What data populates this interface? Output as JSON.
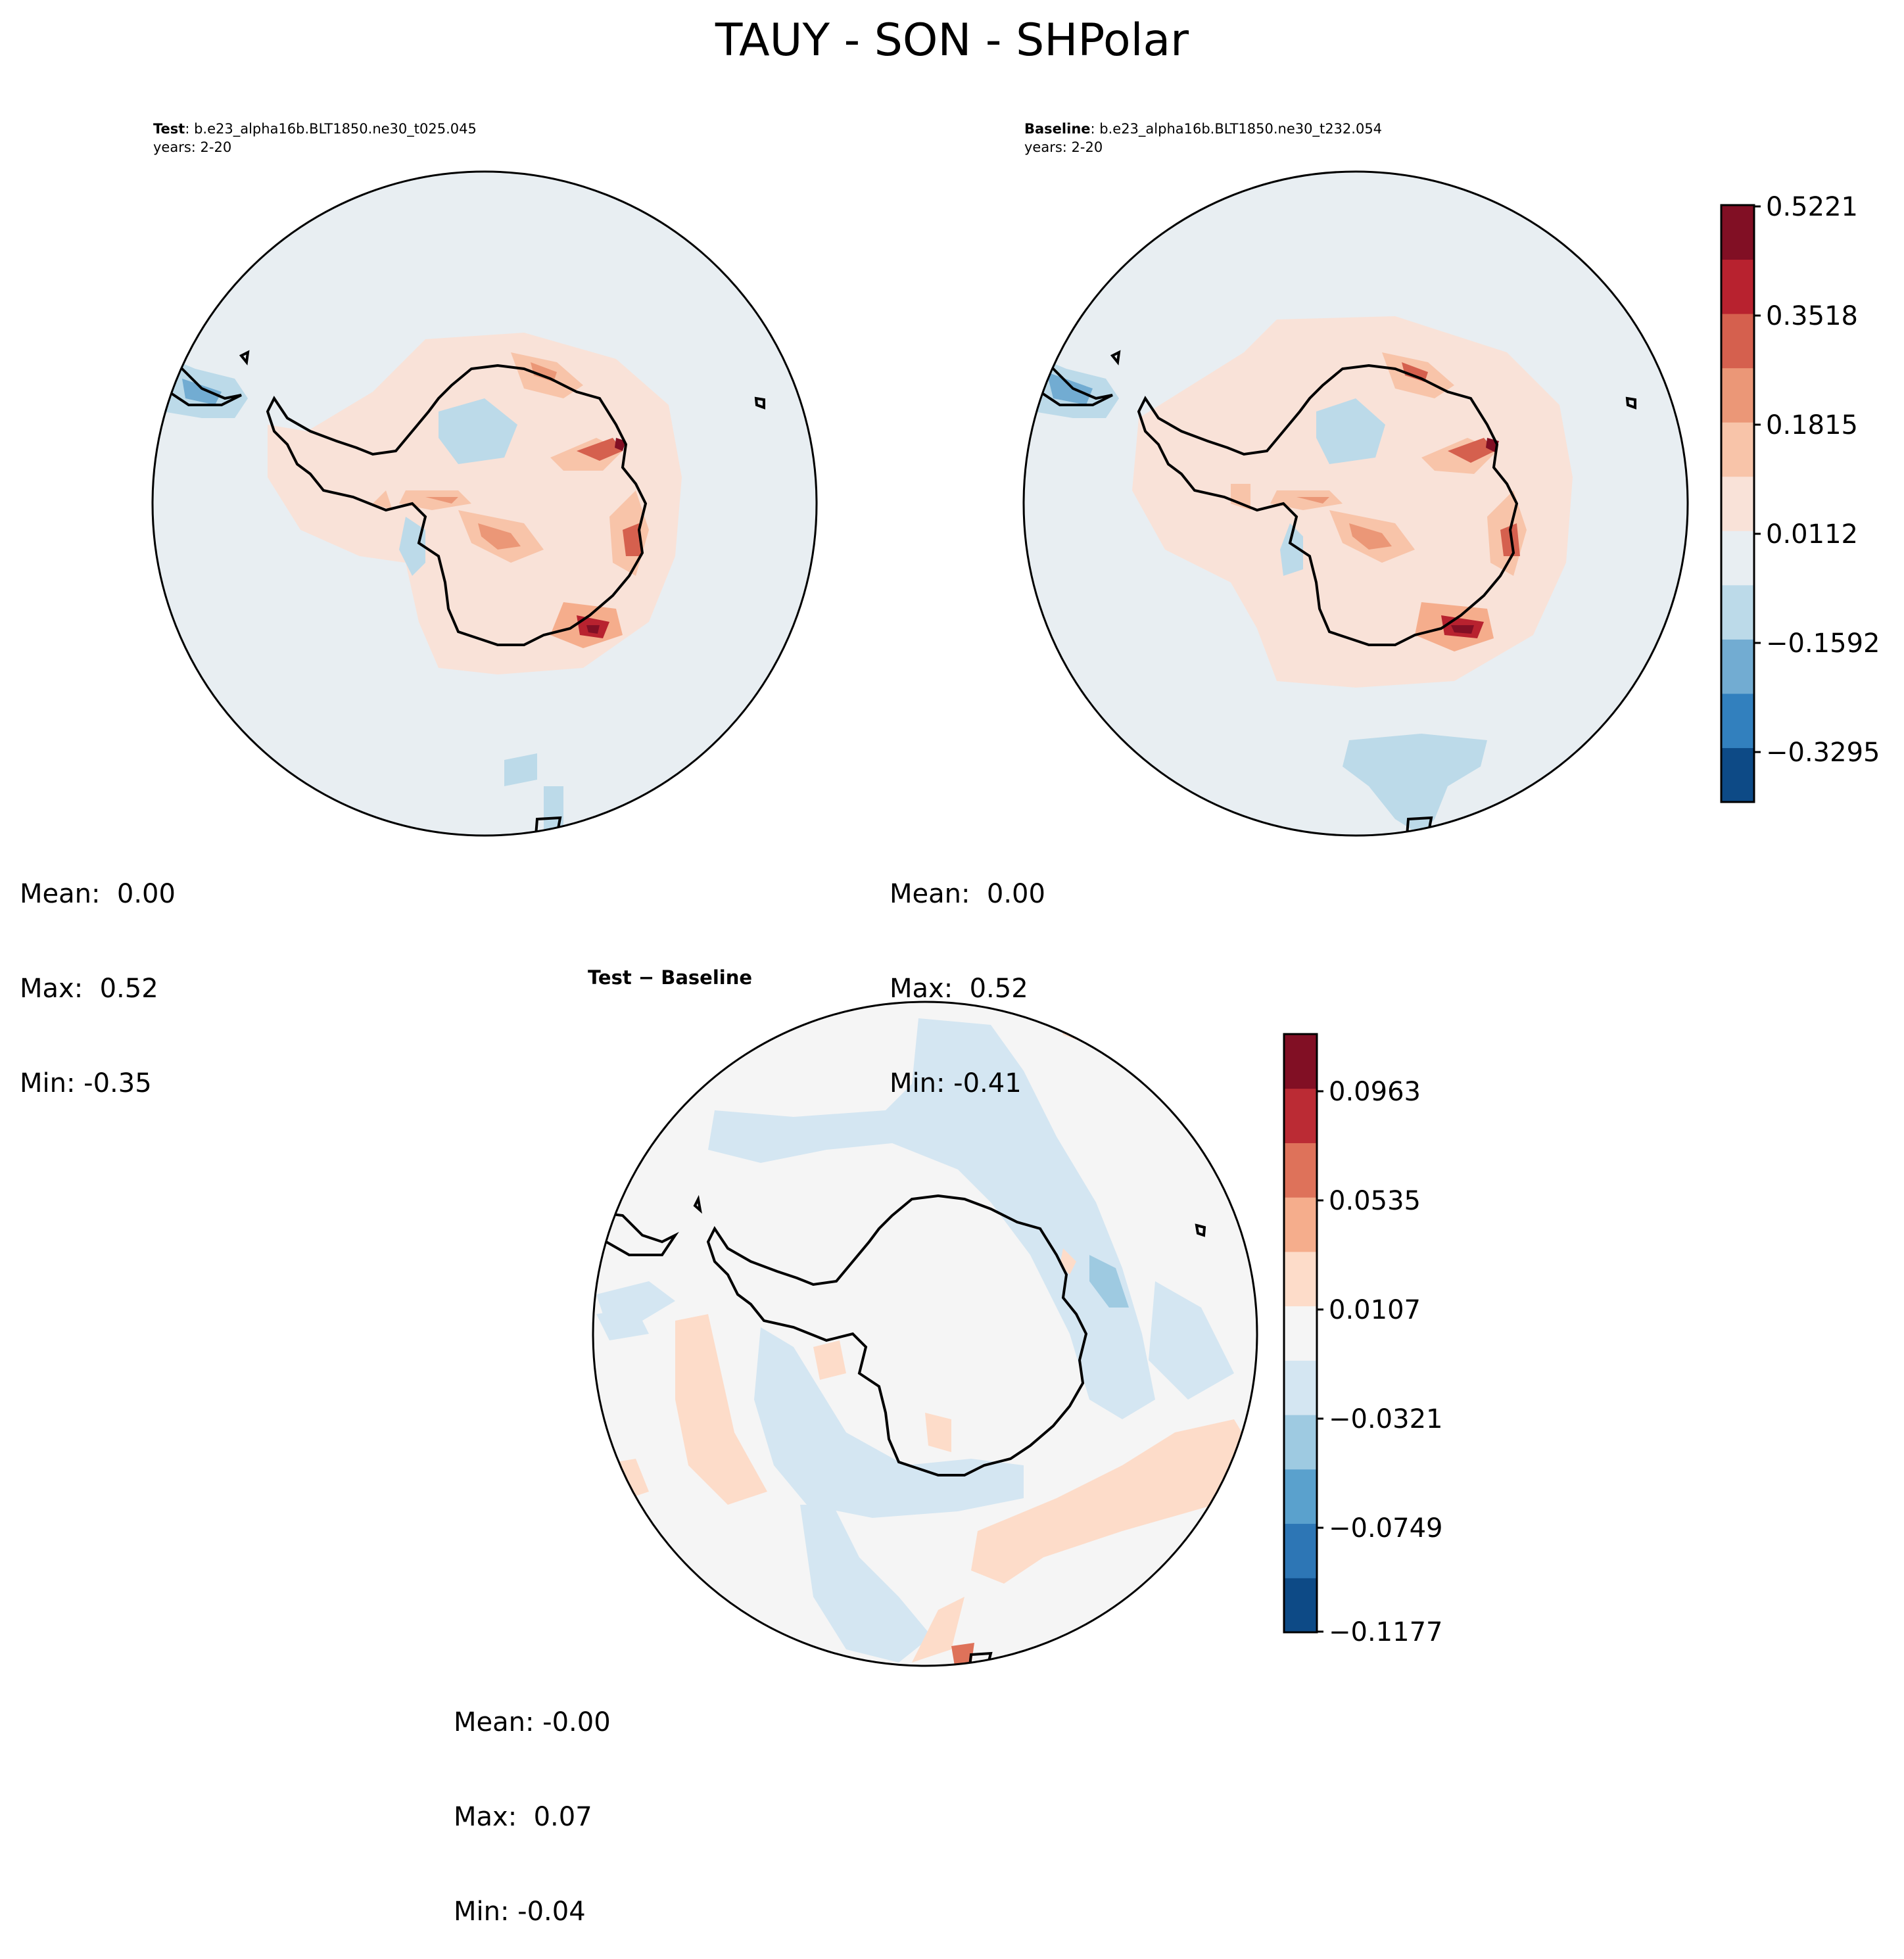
{
  "figure_title": "TAUY - SON - SHPolar",
  "panels": {
    "test": {
      "label": "Test",
      "case": ": b.e23_alpha16b.BLT1850.ne30_t025.045",
      "years": "years: 2-20",
      "stats": {
        "mean": "Mean:  0.00",
        "max": "Max:  0.52",
        "min": "Min: -0.35"
      }
    },
    "baseline": {
      "label": "Baseline",
      "case": ": b.e23_alpha16b.BLT1850.ne30_t232.054",
      "years": "years: 2-20",
      "stats": {
        "mean": "Mean:  0.00",
        "max": "Max:  0.52",
        "min": "Min: -0.41"
      }
    },
    "diff": {
      "label": "Test − Baseline",
      "stats": {
        "mean": "Mean: -0.00",
        "max": "Max:  0.07",
        "min": "Min: -0.04"
      }
    }
  },
  "colorbars": {
    "main": {
      "tick_labels": [
        "0.5221",
        "0.3518",
        "0.1815",
        "0.0112",
        "−0.1592",
        "−0.3295"
      ],
      "colors": [
        "#0d4a86",
        "#3280be",
        "#72acd2",
        "#bcdae9",
        "#e8eef2",
        "#f9e2d8",
        "#f8c4a9",
        "#eb9777",
        "#d5604e",
        "#b8222f",
        "#810f24"
      ]
    },
    "diff": {
      "tick_labels": [
        "0.0963",
        "0.0535",
        "0.0107",
        "−0.0321",
        "−0.0749",
        "−0.1177"
      ],
      "colors": [
        "#0d4a86",
        "#2d76b5",
        "#5aa1cd",
        "#9ecae1",
        "#d4e6f2",
        "#f5f5f5",
        "#fddcc9",
        "#f5ad8c",
        "#de725a",
        "#bb2b34",
        "#810f24"
      ]
    }
  },
  "colors": {
    "map_background_main": "#e8eef2",
    "map_background_diff": "#f5f5f5"
  }
}
